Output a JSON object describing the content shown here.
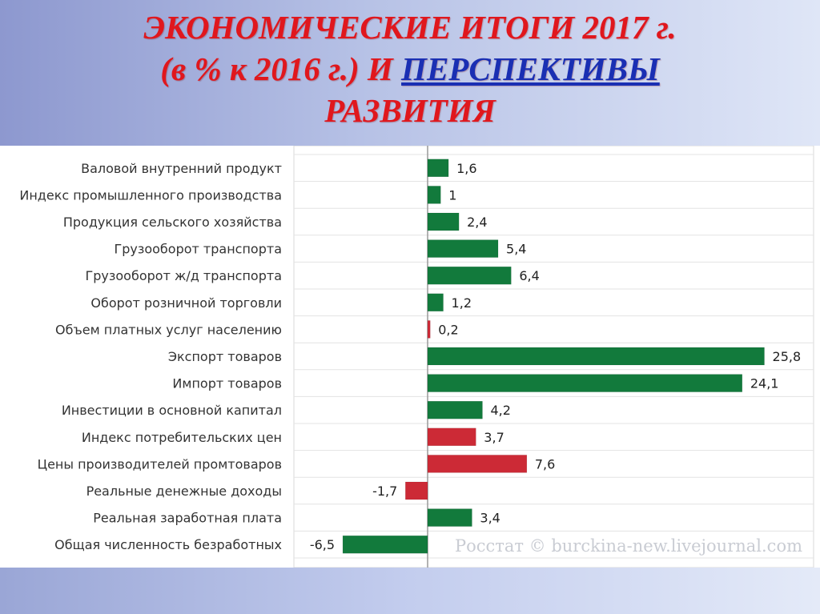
{
  "slide": {
    "title_line1": "ЭКОНОМИЧЕСКИЕ ИТОГИ 2017 г.",
    "title_line2_prefix": "(в % к 2016 г.) И",
    "title_line2_link": "ПЕРСПЕКТИВЫ",
    "title_line3": "РАЗВИТИЯ"
  },
  "watermark": "Росстат © burckina-new.livejournal.com",
  "colors": {
    "positive": "#127a3c",
    "negative": "#cc2a36",
    "title": "#e0171d",
    "link": "#1a2fb3"
  },
  "chart_data": {
    "type": "bar",
    "orientation": "horizontal",
    "categories": [
      "Валовой внутренний продукт",
      "Индекс промышленного производства",
      "Продукция сельского хозяйства",
      "Грузооборот транспорта",
      "Грузооборот ж/д транспорта",
      "Оборот розничной торговли",
      "Объем платных услуг населению",
      "Экспорт товаров",
      "Импорт товаров",
      "Инвестиции в основной капитал",
      "Индекс потребительских цен",
      "Цены производителей промтоваров",
      "Реальные денежные доходы",
      "Реальная заработная плата",
      "Общая численность безработных"
    ],
    "values": [
      1.6,
      1,
      2.4,
      5.4,
      6.4,
      1.2,
      0.2,
      25.8,
      24.1,
      4.2,
      3.7,
      7.6,
      -1.7,
      3.4,
      -6.5
    ],
    "value_labels": [
      "1,6",
      "1",
      "2,4",
      "5,4",
      "6,4",
      "1,2",
      "0,2",
      "25,8",
      "24,1",
      "4,2",
      "3,7",
      "7,6",
      "-1,7",
      "3,4",
      "-6,5"
    ],
    "bar_colors": [
      "positive",
      "positive",
      "positive",
      "positive",
      "positive",
      "positive",
      "negative",
      "positive",
      "positive",
      "positive",
      "negative",
      "negative",
      "negative",
      "positive",
      "positive"
    ],
    "xlim": [
      -8,
      26
    ],
    "grid": true,
    "legend": "none"
  }
}
